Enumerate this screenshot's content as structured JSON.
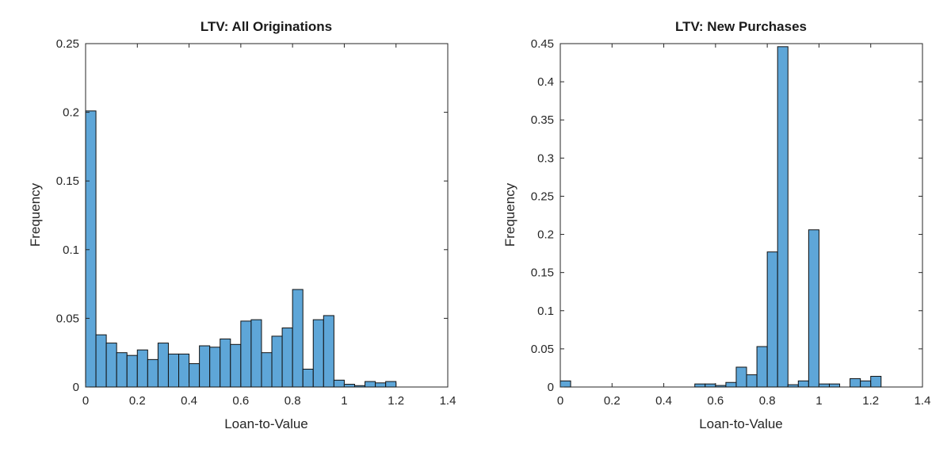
{
  "colors": {
    "bar_fill": "#5ea6d8",
    "bar_edge": "#111111",
    "axis": "#262626"
  },
  "chart_data": [
    {
      "type": "bar",
      "title": "LTV: All Originations",
      "xlabel": "Loan-to-Value",
      "ylabel": "Frequency",
      "xlim": [
        0,
        1.4
      ],
      "ylim": [
        0,
        0.25
      ],
      "xticks": [
        "0",
        "0.2",
        "0.4",
        "0.6",
        "0.8",
        "1",
        "1.2",
        "1.4"
      ],
      "yticks": [
        "0",
        "0.05",
        "0.1",
        "0.15",
        "0.2",
        "0.25"
      ],
      "bin_width": 0.04,
      "bin_starts": [
        0,
        0.04,
        0.08,
        0.12,
        0.16,
        0.2,
        0.24,
        0.28,
        0.32,
        0.36,
        0.4,
        0.44,
        0.48,
        0.52,
        0.56,
        0.6,
        0.64,
        0.68,
        0.72,
        0.76,
        0.8,
        0.84,
        0.88,
        0.92,
        0.96,
        1.0,
        1.04,
        1.08,
        1.12,
        1.16,
        1.2
      ],
      "values": [
        0.201,
        0.038,
        0.032,
        0.025,
        0.023,
        0.027,
        0.02,
        0.032,
        0.024,
        0.024,
        0.017,
        0.03,
        0.029,
        0.035,
        0.031,
        0.048,
        0.049,
        0.025,
        0.037,
        0.043,
        0.071,
        0.013,
        0.049,
        0.052,
        0.005,
        0.002,
        0.001,
        0.004,
        0.003,
        0.004,
        0.0
      ],
      "grid": false
    },
    {
      "type": "bar",
      "title": "LTV: New Purchases",
      "xlabel": "Loan-to-Value",
      "ylabel": "Frequency",
      "xlim": [
        0,
        1.4
      ],
      "ylim": [
        0,
        0.45
      ],
      "xticks": [
        "0",
        "0.2",
        "0.4",
        "0.6",
        "0.8",
        "1",
        "1.2",
        "1.4"
      ],
      "yticks": [
        "0",
        "0.05",
        "0.1",
        "0.15",
        "0.2",
        "0.25",
        "0.3",
        "0.35",
        "0.4",
        "0.45"
      ],
      "bin_width": 0.04,
      "bin_starts": [
        0,
        0.04,
        0.08,
        0.12,
        0.16,
        0.2,
        0.24,
        0.28,
        0.32,
        0.36,
        0.4,
        0.44,
        0.48,
        0.52,
        0.56,
        0.6,
        0.64,
        0.68,
        0.72,
        0.76,
        0.8,
        0.84,
        0.88,
        0.92,
        0.96,
        1.0,
        1.04,
        1.08,
        1.12,
        1.16,
        1.2
      ],
      "values": [
        0.008,
        0,
        0,
        0,
        0,
        0,
        0,
        0,
        0,
        0,
        0,
        0,
        0,
        0.004,
        0.004,
        0.002,
        0.006,
        0.026,
        0.016,
        0.053,
        0.177,
        0.446,
        0.003,
        0.008,
        0.206,
        0.004,
        0.004,
        0.0,
        0.011,
        0.008,
        0.014
      ],
      "grid": false
    }
  ]
}
